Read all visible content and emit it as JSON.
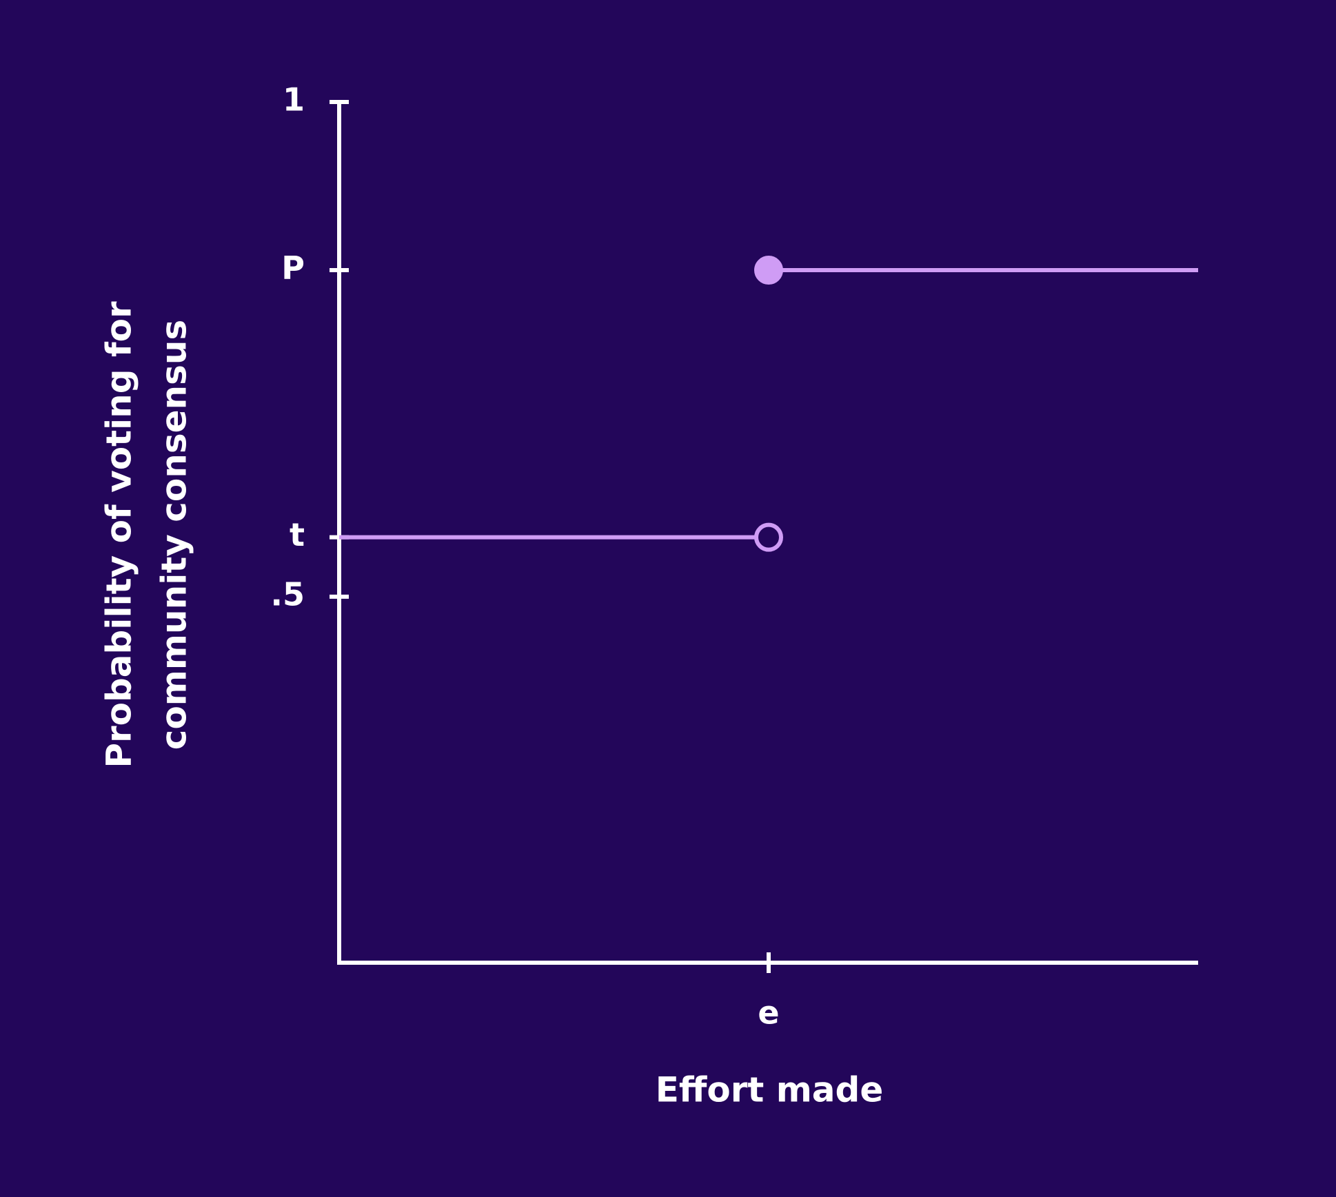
{
  "chart_data": {
    "type": "step",
    "xlabel": "Effort made",
    "ylabel": [
      "Probability of voting for",
      "community consensus"
    ],
    "xlim": [
      0,
      1
    ],
    "ylim": [
      0.13,
      1
    ],
    "xticks": [
      {
        "value": 0.5,
        "label": "e"
      }
    ],
    "yticks": [
      1,
      {
        "value": 0.83,
        "label": "P"
      },
      {
        "value": 0.56,
        "label": "t"
      },
      {
        "value": 0.5,
        "label": ".5"
      }
    ],
    "series": [
      {
        "color": "#cf9cf5",
        "x": [
          0,
          0.5
        ],
        "values": [
          0.56,
          0.56
        ],
        "end_marker": "open"
      },
      {
        "color": "#cf9cf5",
        "x": [
          0.5,
          1
        ],
        "values": [
          0.83,
          0.83
        ],
        "start_marker": "filled"
      }
    ]
  }
}
